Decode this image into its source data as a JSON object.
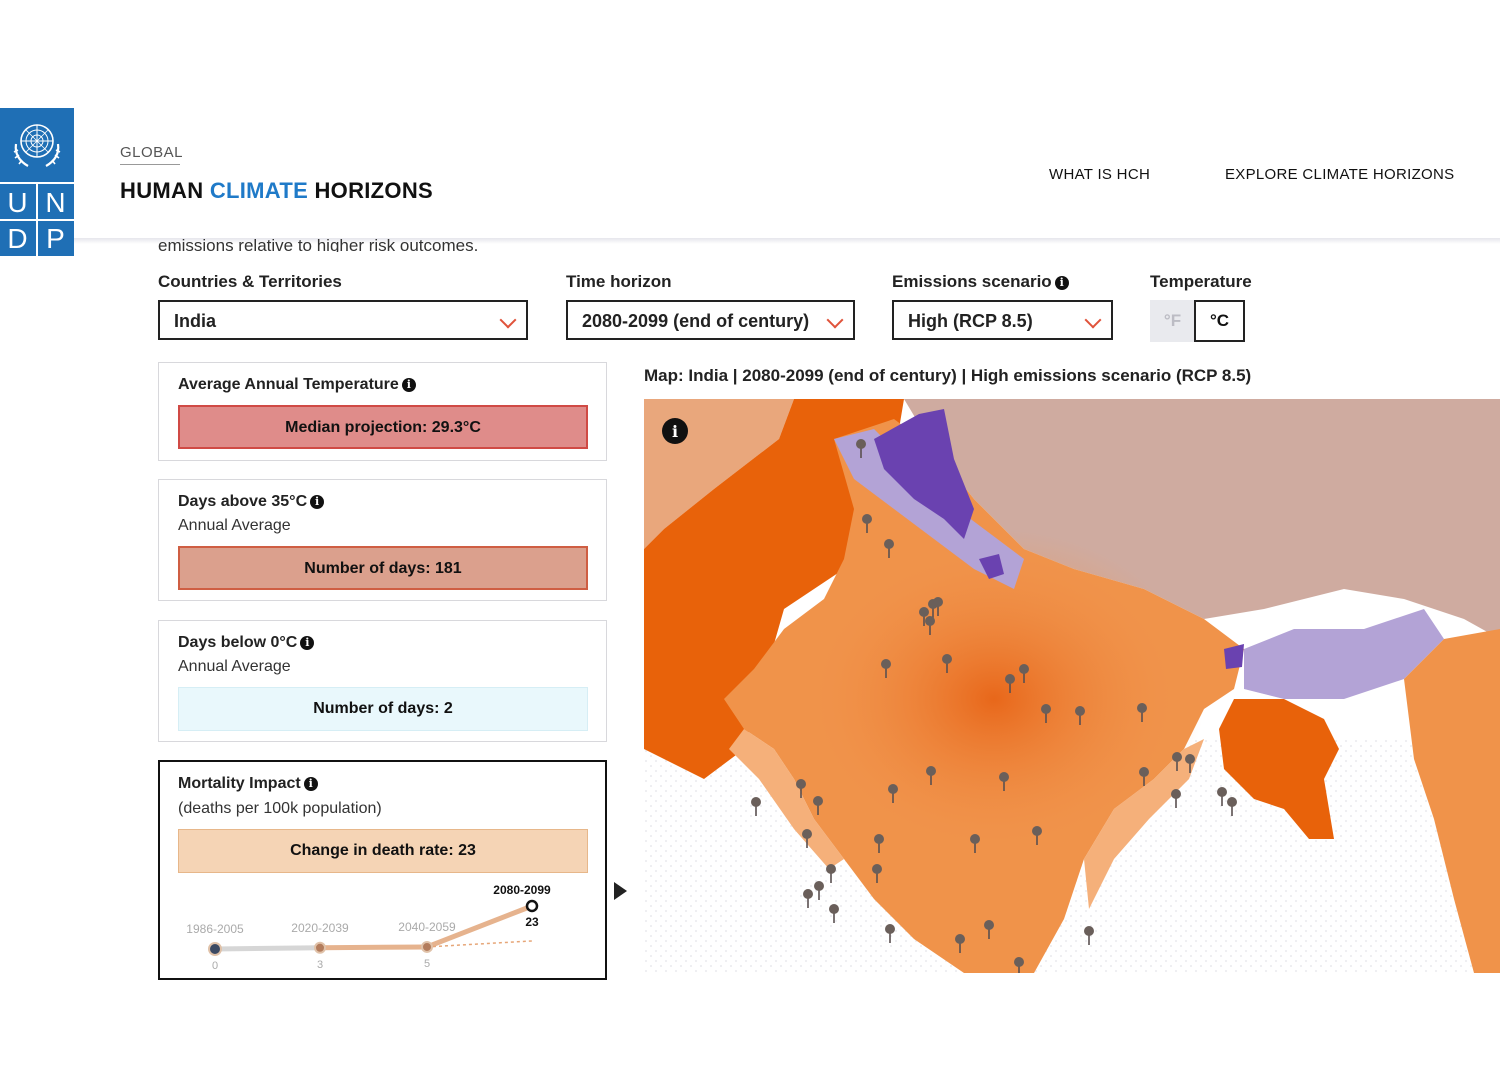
{
  "logo": {
    "letters": [
      "U",
      "N",
      "D",
      "P"
    ],
    "color": "#1f6fb5"
  },
  "header": {
    "eyebrow": "GLOBAL",
    "title_part1": "HUMAN",
    "title_part2": "CLIMATE",
    "title_part3": "HORIZONS",
    "nav": [
      "WHAT IS HCH",
      "EXPLORE CLIMATE HORIZONS"
    ]
  },
  "intro": {
    "clipped_text": "emissions relative to higher risk outcomes."
  },
  "filters": {
    "country_label": "Countries & Territories",
    "country_value": "India",
    "time_label": "Time horizon",
    "time_value": "2080-2099 (end of century)",
    "emission_label": "Emissions scenario",
    "emission_value": "High (RCP 8.5)",
    "temperature_label": "Temperature",
    "unit_f": "°F",
    "unit_c": "°C",
    "selected_unit": "°C"
  },
  "cards": {
    "temperature": {
      "title": "Average Annual Temperature",
      "value_text": "Median projection: 29.3°C",
      "color": "#df8c8a"
    },
    "hot_days": {
      "title": "Days above 35°C",
      "subtitle": "Annual Average",
      "value_text": "Number of days: 181",
      "color": "#dba08d"
    },
    "cold_days": {
      "title": "Days below 0°C",
      "subtitle": "Annual Average",
      "value_text": "Number of days: 2",
      "color": "#e9f8fc"
    },
    "mortality": {
      "title": "Mortality Impact",
      "subtitle": "(deaths per 100k population)",
      "value_text": "Change in death rate: 23",
      "color": "#f5d4b5"
    }
  },
  "chart_data": {
    "type": "line",
    "x": [
      "1986-2005",
      "2020-2039",
      "2040-2059",
      "2080-2099"
    ],
    "values": [
      0,
      3,
      5,
      23
    ],
    "value_labels": [
      "0",
      "3",
      "5",
      "23"
    ],
    "highlighted": "2080-2099"
  },
  "map": {
    "title": "Map: India | 2080-2099 (end of century) | High emissions scenario (RCP 8.5)",
    "info_icon": "info-icon",
    "colors": {
      "hot_dark": "#e8620a",
      "hot_mid": "#f0934a",
      "warm_light": "#f5b07a",
      "cool_purple": "#6a42b0",
      "light_purple": "#b3a3d6",
      "neighbor_brown": "#cfaba0",
      "sea": "#ffffff"
    }
  }
}
